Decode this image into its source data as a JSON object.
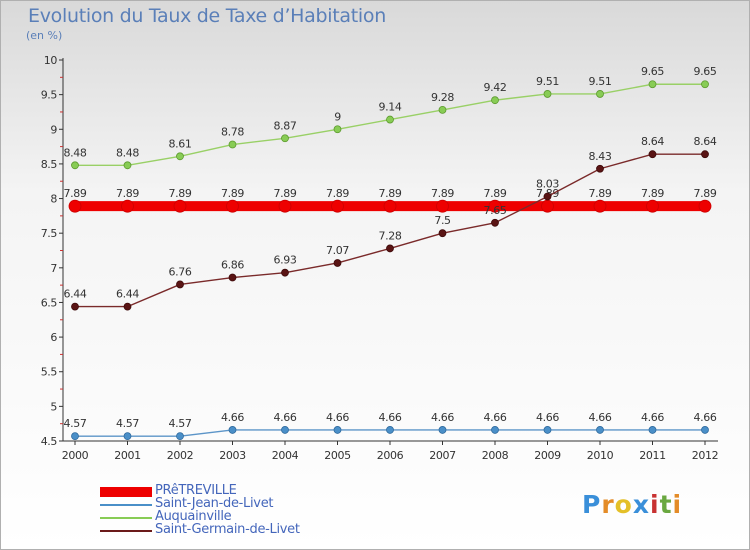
{
  "title": "Evolution du Taux de Taxe d’Habitation",
  "subtitle": "(en %)",
  "logo": {
    "letters": [
      "P",
      "r",
      "o",
      "x",
      "i",
      "t",
      "i"
    ],
    "colors": [
      "#3a8fd9",
      "#e48c28",
      "#e4c028",
      "#3a8fd9",
      "#c83232",
      "#6aa840",
      "#e48c28"
    ]
  },
  "chart_data": {
    "type": "line",
    "title": "Evolution du Taux de Taxe d’Habitation",
    "ylabel": "(en %)",
    "x": [
      "2000",
      "2001",
      "2002",
      "2003",
      "2004",
      "2005",
      "2006",
      "2007",
      "2008",
      "2009",
      "2010",
      "2011",
      "2012"
    ],
    "yticks": [
      "4.5",
      "5",
      "5.5",
      "6",
      "6.5",
      "7",
      "7.5",
      "8",
      "8.5",
      "9",
      "9.5",
      "10"
    ],
    "ylim": [
      4.5,
      10
    ],
    "legend_position": "bottom-left",
    "series": [
      {
        "name": "PRêTREVILLE",
        "color": "#ee0000",
        "values": [
          7.89,
          7.89,
          7.89,
          7.89,
          7.89,
          7.89,
          7.89,
          7.89,
          7.89,
          7.89,
          7.89,
          7.89,
          7.89
        ],
        "labels": [
          "7.89",
          "7.89",
          "7.89",
          "7.89",
          "7.89",
          "7.89",
          "7.89",
          "7.89",
          "7.89",
          "7.89",
          "7.89",
          "7.89",
          "7.89"
        ]
      },
      {
        "name": "Saint-Jean-de-Livet",
        "color": "#4a8fc8",
        "values": [
          4.57,
          4.57,
          4.57,
          4.66,
          4.66,
          4.66,
          4.66,
          4.66,
          4.66,
          4.66,
          4.66,
          4.66,
          4.66
        ],
        "labels": [
          "4.57",
          "4.57",
          "4.57",
          "4.66",
          "4.66",
          "4.66",
          "4.66",
          "4.66",
          "4.66",
          "4.66",
          "4.66",
          "4.66",
          "4.66"
        ]
      },
      {
        "name": "Auquainville",
        "color": "#88cc55",
        "values": [
          8.48,
          8.48,
          8.61,
          8.78,
          8.87,
          9,
          9.14,
          9.28,
          9.42,
          9.51,
          9.51,
          9.65,
          9.65
        ],
        "labels": [
          "8.48",
          "8.48",
          "8.61",
          "8.78",
          "8.87",
          "9",
          "9.14",
          "9.28",
          "9.42",
          "9.51",
          "9.51",
          "9.65",
          "9.65"
        ]
      },
      {
        "name": "Saint-Germain-de-Livet",
        "color": "#6b1a1a",
        "values": [
          6.44,
          6.44,
          6.76,
          6.86,
          6.93,
          7.07,
          7.28,
          7.5,
          7.65,
          8.03,
          8.43,
          8.64,
          8.64
        ],
        "labels": [
          "6.44",
          "6.44",
          "6.76",
          "6.86",
          "6.93",
          "7.07",
          "7.28",
          "7.5",
          "7.65",
          "8.03",
          "8.43",
          "8.64",
          "8.64"
        ]
      }
    ]
  }
}
